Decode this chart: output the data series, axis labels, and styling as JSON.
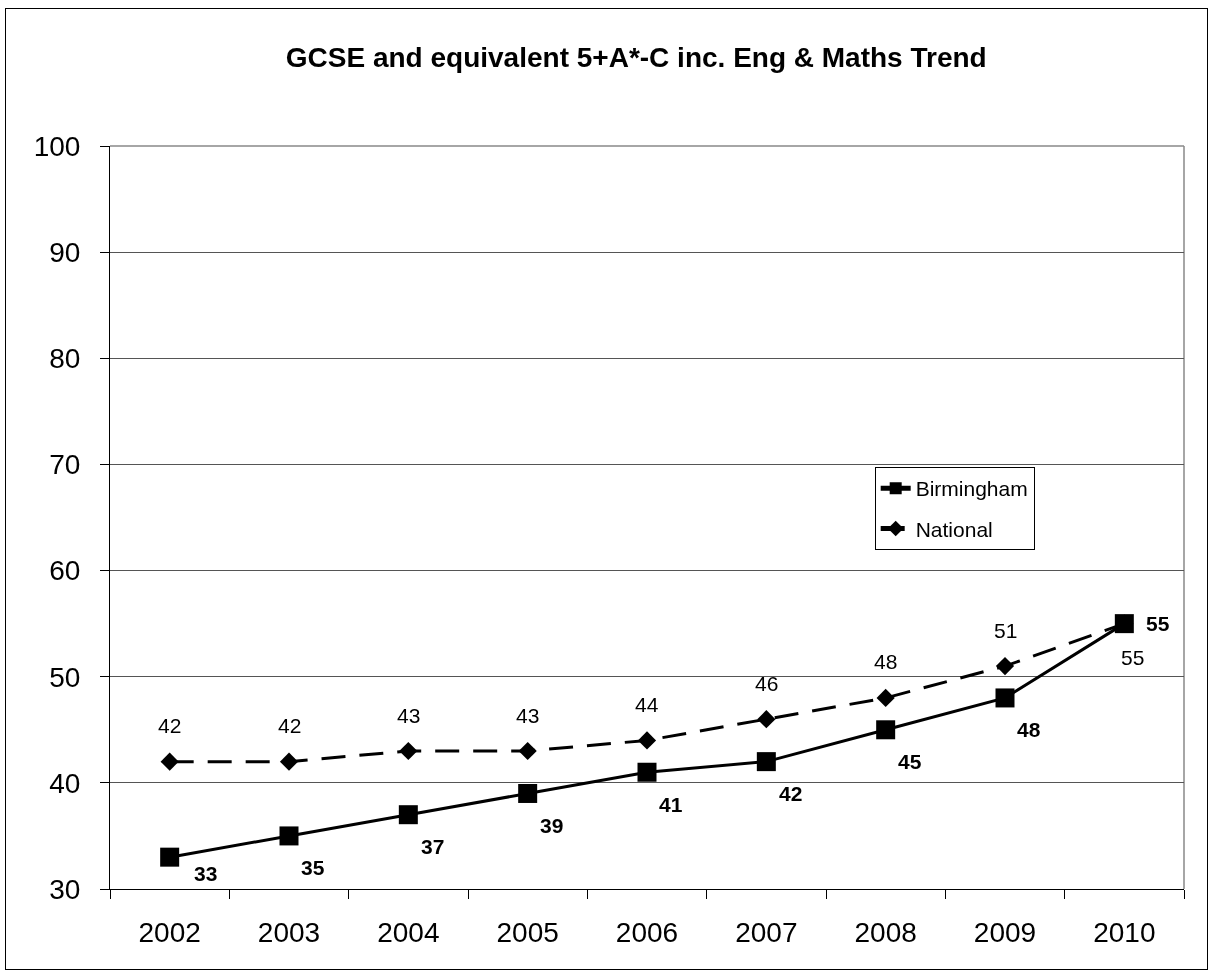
{
  "chart_data": {
    "type": "line",
    "title": "GCSE and equivalent 5+A*-C inc. Eng & Maths Trend",
    "categories": [
      "2002",
      "2003",
      "2004",
      "2005",
      "2006",
      "2007",
      "2008",
      "2009",
      "2010"
    ],
    "series": [
      {
        "name": "Birmingham",
        "color": "#000000",
        "marker": "square",
        "line_style": "solid",
        "values": [
          33,
          35,
          37,
          39,
          41,
          42,
          45,
          48,
          55
        ]
      },
      {
        "name": "National",
        "color": "#000000",
        "marker": "diamond",
        "line_style": "dashed",
        "values": [
          42,
          42,
          43,
          43,
          44,
          46,
          48,
          51,
          55
        ]
      }
    ],
    "ylim": [
      30,
      100
    ],
    "yticks": [
      30,
      40,
      50,
      60,
      70,
      80,
      90,
      100
    ],
    "grid": "y",
    "legend": "right",
    "data_labels": true
  }
}
